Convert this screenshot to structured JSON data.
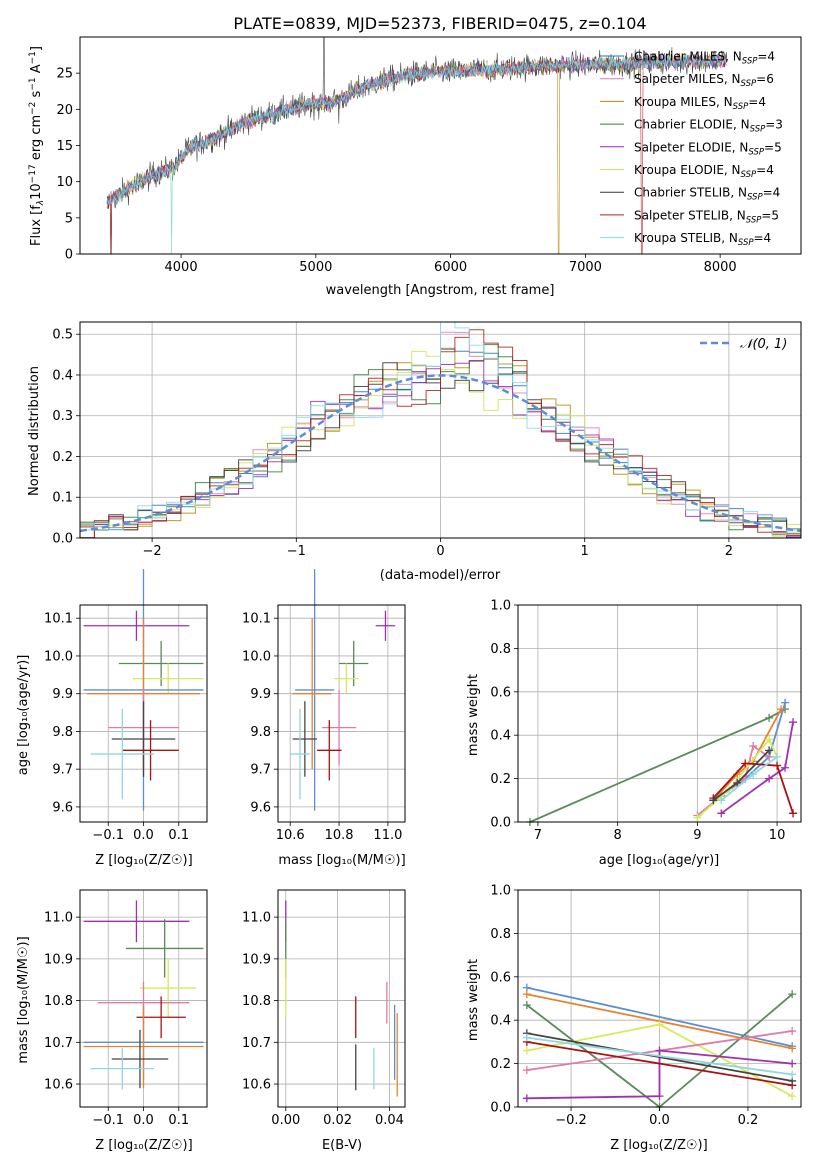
{
  "title": "PLATE=0839, MJD=52373, FIBERID=0475, z=0.104",
  "series": [
    {
      "name": "Chabrier MILES",
      "sub": "SSP",
      "n": "=4",
      "color": "#1f77b4"
    },
    {
      "name": "Salpeter MILES",
      "sub": "SSP",
      "n": "=6",
      "color": "#e377c2"
    },
    {
      "name": "Kroupa MILES",
      "sub": "SSP",
      "n": "=4",
      "color": "#b8860b"
    },
    {
      "name": "Chabrier ELODIE",
      "sub": "SSP",
      "n": "=3",
      "color": "#2e7d32"
    },
    {
      "name": "Salpeter ELODIE",
      "sub": "SSP",
      "n": "=5",
      "color": "#9c27b0"
    },
    {
      "name": "Kroupa ELODIE",
      "sub": "SSP",
      "n": "=4",
      "color": "#d4e157"
    },
    {
      "name": "Chabrier STELIB",
      "sub": "SSP",
      "n": "=4",
      "color": "#333333"
    },
    {
      "name": "Salpeter STELIB",
      "sub": "SSP",
      "n": "=5",
      "color": "#b71c1c"
    },
    {
      "name": "Kroupa STELIB",
      "sub": "SSP",
      "n": "=4",
      "color": "#80deea"
    }
  ],
  "extra_colors": {
    "blue": "#5b8ed6",
    "orange": "#e8822f",
    "green": "#5a8a5a",
    "purple": "#a030b0",
    "pink": "#e07aa8",
    "lime": "#d7ea5a",
    "dark": "#444444",
    "red": "#aa1111",
    "cyan": "#8fd8e0"
  },
  "chart_data": [
    {
      "type": "line",
      "xlabel": "wavelength [Angstrom, rest frame]",
      "ylabel_parts": {
        "a": "Flux [f",
        "b": "λ",
        "c": "10",
        "d": "−17",
        "e": " erg cm",
        "f": "−2",
        "g": " s",
        "h": "−1",
        "i": " A",
        "j": "−1",
        "k": "]"
      },
      "xlim": [
        3250,
        8600
      ],
      "ylim": [
        0,
        30
      ],
      "xticks": [
        4000,
        5000,
        6000,
        7000,
        8000
      ],
      "yticks": [
        0,
        5,
        10,
        15,
        20,
        25
      ],
      "knots": [
        [
          3450,
          7
        ],
        [
          3600,
          9
        ],
        [
          3800,
          11
        ],
        [
          3950,
          12
        ],
        [
          4050,
          14.5
        ],
        [
          4300,
          16.5
        ],
        [
          4500,
          18.5
        ],
        [
          4700,
          19.5
        ],
        [
          4900,
          20.5
        ],
        [
          5100,
          21
        ],
        [
          5200,
          21.5
        ],
        [
          5350,
          23
        ],
        [
          5500,
          24
        ],
        [
          5700,
          24.8
        ],
        [
          5900,
          25.2
        ],
        [
          6100,
          25.3
        ],
        [
          6300,
          25.5
        ],
        [
          6500,
          25.8
        ],
        [
          6700,
          26
        ],
        [
          6900,
          26.1
        ],
        [
          7100,
          26.2
        ],
        [
          7300,
          26.3
        ],
        [
          7500,
          26.5
        ],
        [
          7700,
          26.6
        ],
        [
          7950,
          26.7
        ],
        [
          8050,
          26.8
        ]
      ],
      "dips": [
        [
          3480,
          0
        ],
        [
          3930,
          0
        ],
        [
          6800,
          0
        ],
        [
          7420,
          0
        ]
      ]
    },
    {
      "type": "bar",
      "xlabel": "(data-model)/error",
      "ylabel": "Normed distribution",
      "xlim": [
        -2.5,
        2.5
      ],
      "ylim": [
        0,
        0.53
      ],
      "xticks": [
        -2,
        -1,
        0,
        1,
        2
      ],
      "xtick_labels": [
        "−2",
        "−1",
        "0",
        "1",
        "2"
      ],
      "yticks": [
        0,
        0.1,
        0.2,
        0.3,
        0.4,
        0.5
      ],
      "ytick_labels": [
        "0.0",
        "0.1",
        "0.2",
        "0.3",
        "0.4",
        "0.5"
      ],
      "bin_width": 0.1,
      "legend_label": "𝒩(0, 1)",
      "legend_position": "top-right",
      "grid": true
    },
    {
      "type": "scatter",
      "xlabel": "Z [log₁₀(Z/Z☉)]",
      "ylabel": "age  [log₁₀(age/yr)]",
      "xlim": [
        -0.18,
        0.18
      ],
      "ylim": [
        9.56,
        10.135
      ],
      "xticks": [
        -0.1,
        0.0,
        0.1
      ],
      "xtick_labels": [
        "−0.1",
        "0.0",
        "0.1"
      ],
      "yticks": [
        9.6,
        9.7,
        9.8,
        9.9,
        10.0,
        10.1
      ],
      "ytick_labels": [
        "9.6",
        "9.7",
        "9.8",
        "9.9",
        "10.0",
        "10.1"
      ],
      "points": [
        {
          "x": -0.02,
          "xe": 0.15,
          "y": 10.08,
          "ye": 0.04,
          "c": "purple"
        },
        {
          "x": 0.05,
          "xe": 0.12,
          "y": 9.98,
          "ye": 0.06,
          "c": "green"
        },
        {
          "x": 0.07,
          "xe": 0.1,
          "y": 9.94,
          "ye": 0.04,
          "c": "lime"
        },
        {
          "x": 0.0,
          "xe": 0.17,
          "y": 9.91,
          "ye": 0.32,
          "c": "blue"
        },
        {
          "x": 0.0,
          "xe": 0.16,
          "y": 9.9,
          "ye": 0.2,
          "c": "orange"
        },
        {
          "x": 0.0,
          "xe": 0.1,
          "y": 9.81,
          "ye": 0.1,
          "c": "pink"
        },
        {
          "x": 0.0,
          "xe": 0.09,
          "y": 9.78,
          "ye": 0.1,
          "c": "dark"
        },
        {
          "x": 0.02,
          "xe": 0.08,
          "y": 9.75,
          "ye": 0.08,
          "c": "red"
        },
        {
          "x": -0.06,
          "xe": 0.09,
          "y": 9.74,
          "ye": 0.12,
          "c": "cyan"
        }
      ]
    },
    {
      "type": "scatter",
      "xlabel": "mass [log₁₀(M/M☉)]",
      "ylabel": "",
      "xlim": [
        10.55,
        11.07
      ],
      "ylim": [
        9.56,
        10.135
      ],
      "xticks": [
        10.6,
        10.8,
        11.0
      ],
      "xtick_labels": [
        "10.6",
        "10.8",
        "11.0"
      ],
      "yticks": [
        9.6,
        9.7,
        9.8,
        9.9,
        10.0,
        10.1
      ],
      "ytick_labels": [
        "9.6",
        "9.7",
        "9.8",
        "9.9",
        "10.0",
        "10.1"
      ],
      "points": [
        {
          "x": 10.99,
          "xe": 0.04,
          "y": 10.08,
          "ye": 0.04,
          "c": "purple"
        },
        {
          "x": 10.86,
          "xe": 0.06,
          "y": 9.98,
          "ye": 0.06,
          "c": "green"
        },
        {
          "x": 10.83,
          "xe": 0.05,
          "y": 9.94,
          "ye": 0.04,
          "c": "lime"
        },
        {
          "x": 10.7,
          "xe": 0.08,
          "y": 9.91,
          "ye": 0.32,
          "c": "blue"
        },
        {
          "x": 10.69,
          "xe": 0.08,
          "y": 9.9,
          "ye": 0.2,
          "c": "orange"
        },
        {
          "x": 10.8,
          "xe": 0.07,
          "y": 9.81,
          "ye": 0.1,
          "c": "pink"
        },
        {
          "x": 10.66,
          "xe": 0.05,
          "y": 9.78,
          "ye": 0.1,
          "c": "dark"
        },
        {
          "x": 10.76,
          "xe": 0.05,
          "y": 9.75,
          "ye": 0.08,
          "c": "red"
        },
        {
          "x": 10.64,
          "xe": 0.04,
          "y": 9.74,
          "ye": 0.12,
          "c": "cyan"
        }
      ]
    },
    {
      "type": "line",
      "xlabel": "age  [log₁₀(age/yr)]",
      "ylabel": "mass weight",
      "xlim": [
        6.75,
        10.3
      ],
      "ylim": [
        0,
        1
      ],
      "xticks": [
        7,
        8,
        9,
        10
      ],
      "xtick_labels": [
        "7",
        "8",
        "9",
        "10"
      ],
      "yticks": [
        0,
        0.2,
        0.4,
        0.6,
        0.8,
        1.0
      ],
      "ytick_labels": [
        "0.0",
        "0.2",
        "0.4",
        "0.6",
        "0.8",
        "1.0"
      ],
      "lines": [
        {
          "c": "green",
          "pts": [
            [
              6.9,
              0.0
            ],
            [
              9.9,
              0.48
            ],
            [
              10.1,
              0.52
            ]
          ]
        },
        {
          "c": "blue",
          "pts": [
            [
              9.3,
              0.12
            ],
            [
              9.6,
              0.2
            ],
            [
              9.9,
              0.3
            ],
            [
              10.1,
              0.55
            ]
          ]
        },
        {
          "c": "orange",
          "pts": [
            [
              9.2,
              0.1
            ],
            [
              9.5,
              0.22
            ],
            [
              9.7,
              0.28
            ],
            [
              10.05,
              0.52
            ]
          ]
        },
        {
          "c": "pink",
          "pts": [
            [
              9.0,
              0.03
            ],
            [
              9.3,
              0.12
            ],
            [
              9.6,
              0.2
            ],
            [
              9.7,
              0.35
            ],
            [
              9.9,
              0.3
            ]
          ]
        },
        {
          "c": "lime",
          "pts": [
            [
              9.0,
              0.02
            ],
            [
              9.4,
              0.15
            ],
            [
              9.9,
              0.38
            ],
            [
              10.0,
              0.3
            ]
          ]
        },
        {
          "c": "purple",
          "pts": [
            [
              9.3,
              0.04
            ],
            [
              9.9,
              0.2
            ],
            [
              10.1,
              0.25
            ],
            [
              10.2,
              0.46
            ]
          ]
        },
        {
          "c": "red",
          "pts": [
            [
              9.2,
              0.11
            ],
            [
              9.6,
              0.27
            ],
            [
              10.0,
              0.26
            ],
            [
              10.2,
              0.04
            ]
          ]
        },
        {
          "c": "dark",
          "pts": [
            [
              9.2,
              0.1
            ],
            [
              9.5,
              0.18
            ],
            [
              9.9,
              0.33
            ]
          ]
        },
        {
          "c": "cyan",
          "pts": [
            [
              9.3,
              0.1
            ],
            [
              9.7,
              0.22
            ],
            [
              10.0,
              0.3
            ]
          ]
        }
      ]
    },
    {
      "type": "scatter",
      "xlabel": "Z [log₁₀(Z/Z☉)]",
      "ylabel": "mass [log₁₀(M/M☉)]",
      "xlim": [
        -0.18,
        0.18
      ],
      "ylim": [
        10.545,
        11.065
      ],
      "xticks": [
        -0.1,
        0.0,
        0.1
      ],
      "xtick_labels": [
        "−0.1",
        "0.0",
        "0.1"
      ],
      "yticks": [
        10.6,
        10.7,
        10.8,
        10.9,
        11.0
      ],
      "ytick_labels": [
        "10.6",
        "10.7",
        "10.8",
        "10.9",
        "11.0"
      ],
      "points": [
        {
          "x": -0.02,
          "xe": 0.15,
          "y": 10.99,
          "ye": 0.05,
          "c": "purple"
        },
        {
          "x": 0.06,
          "xe": 0.11,
          "y": 10.925,
          "ye": 0.07,
          "c": "green"
        },
        {
          "x": 0.07,
          "xe": 0.08,
          "y": 10.83,
          "ye": 0.07,
          "c": "lime"
        },
        {
          "x": 0.0,
          "xe": 0.13,
          "y": 10.795,
          "ye": 0.05,
          "c": "pink"
        },
        {
          "x": 0.05,
          "xe": 0.07,
          "y": 10.76,
          "ye": 0.05,
          "c": "red"
        },
        {
          "x": 0.0,
          "xe": 0.17,
          "y": 10.7,
          "ye": 0.09,
          "c": "blue"
        },
        {
          "x": 0.0,
          "xe": 0.17,
          "y": 10.69,
          "ye": 0.1,
          "c": "orange"
        },
        {
          "x": -0.01,
          "xe": 0.08,
          "y": 10.66,
          "ye": 0.07,
          "c": "dark"
        },
        {
          "x": -0.06,
          "xe": 0.09,
          "y": 10.637,
          "ye": 0.05,
          "c": "cyan"
        }
      ]
    },
    {
      "type": "scatter",
      "xlabel": "E(B-V)",
      "ylabel": "",
      "xlim": [
        -0.003,
        0.046
      ],
      "ylim": [
        10.545,
        11.065
      ],
      "xticks": [
        0.0,
        0.02,
        0.04
      ],
      "xtick_labels": [
        "0.00",
        "0.02",
        "0.04"
      ],
      "yticks": [
        10.6,
        10.7,
        10.8,
        10.9,
        11.0
      ],
      "ytick_labels": [
        "10.6",
        "10.7",
        "10.8",
        "10.9",
        "11.0"
      ],
      "points": [
        {
          "x": 0.0,
          "xe": 0,
          "y": 10.99,
          "ye": 0.05,
          "c": "purple"
        },
        {
          "x": 0.0,
          "xe": 0,
          "y": 10.925,
          "ye": 0.07,
          "c": "green"
        },
        {
          "x": 0.0,
          "xe": 0,
          "y": 10.83,
          "ye": 0.07,
          "c": "lime"
        },
        {
          "x": 0.039,
          "xe": 0,
          "y": 10.795,
          "ye": 0.05,
          "c": "pink"
        },
        {
          "x": 0.027,
          "xe": 0,
          "y": 10.76,
          "ye": 0.05,
          "c": "red"
        },
        {
          "x": 0.042,
          "xe": 0,
          "y": 10.7,
          "ye": 0.09,
          "c": "blue"
        },
        {
          "x": 0.043,
          "xe": 0,
          "y": 10.67,
          "ye": 0.1,
          "c": "orange"
        },
        {
          "x": 0.027,
          "xe": 0,
          "y": 10.64,
          "ye": 0.055,
          "c": "dark"
        },
        {
          "x": 0.034,
          "xe": 0,
          "y": 10.637,
          "ye": 0.05,
          "c": "cyan"
        }
      ]
    },
    {
      "type": "line",
      "xlabel": "Z [log₁₀(Z/Z☉)]",
      "ylabel": "mass weight",
      "xlim": [
        -0.32,
        0.32
      ],
      "ylim": [
        0,
        1
      ],
      "xticks": [
        -0.2,
        0.0,
        0.2
      ],
      "xtick_labels": [
        "−0.2",
        "0.0",
        "0.2"
      ],
      "yticks": [
        0,
        0.2,
        0.4,
        0.6,
        0.8,
        1.0
      ],
      "ytick_labels": [
        "0.0",
        "0.2",
        "0.4",
        "0.6",
        "0.8",
        "1.0"
      ],
      "lines": [
        {
          "c": "blue",
          "pts": [
            [
              -0.3,
              0.55
            ],
            [
              0.3,
              0.28
            ]
          ]
        },
        {
          "c": "orange",
          "pts": [
            [
              -0.3,
              0.52
            ],
            [
              0.3,
              0.27
            ]
          ]
        },
        {
          "c": "green",
          "pts": [
            [
              -0.3,
              0.47
            ],
            [
              0.0,
              0.0
            ],
            [
              0.3,
              0.52
            ]
          ]
        },
        {
          "c": "lime",
          "pts": [
            [
              -0.3,
              0.26
            ],
            [
              0.0,
              0.38
            ],
            [
              0.3,
              0.05
            ]
          ]
        },
        {
          "c": "pink",
          "pts": [
            [
              -0.3,
              0.17
            ],
            [
              0.3,
              0.35
            ]
          ]
        },
        {
          "c": "purple",
          "pts": [
            [
              -0.3,
              0.04
            ],
            [
              0.0,
              0.05
            ],
            [
              0.0,
              0.26
            ],
            [
              0.3,
              0.2
            ]
          ]
        },
        {
          "c": "red",
          "pts": [
            [
              -0.3,
              0.3
            ],
            [
              0.3,
              0.1
            ]
          ]
        },
        {
          "c": "dark",
          "pts": [
            [
              -0.3,
              0.34
            ],
            [
              0.3,
              0.12
            ]
          ]
        },
        {
          "c": "cyan",
          "pts": [
            [
              -0.3,
              0.32
            ],
            [
              0.3,
              0.15
            ]
          ]
        }
      ]
    }
  ]
}
